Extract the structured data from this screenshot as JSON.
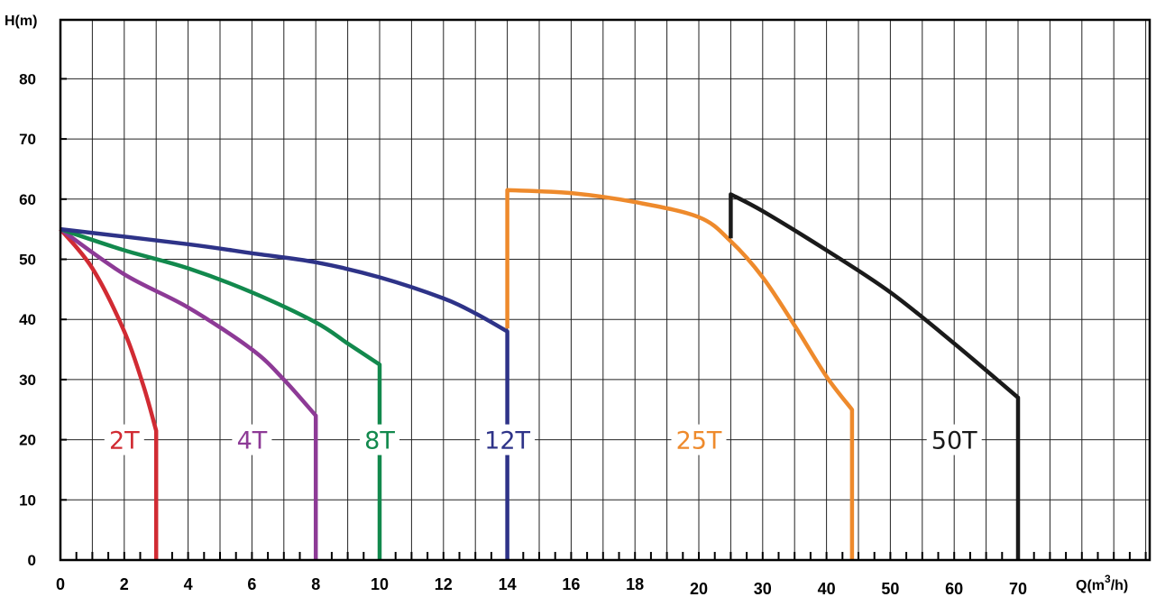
{
  "chart_data": {
    "type": "line",
    "title": "",
    "ylabel": "H(m)",
    "xlabel_prefix": "Q(m",
    "xlabel_sup": "3",
    "xlabel_suffix": "/h)",
    "ylim": [
      0,
      90
    ],
    "yticks": [
      "0",
      "10",
      "20",
      "30",
      "40",
      "50",
      "60",
      "70",
      "80"
    ],
    "xtick_labels": [
      "0",
      "2",
      "4",
      "6",
      "8",
      "10",
      "12",
      "14",
      "16",
      "18",
      "20",
      "30",
      "40",
      "50",
      "60",
      "70"
    ],
    "x_scale_note": "piecewise: 0-14 linear (2 per major grid), 14-20 continues; 20-70 with 10 per major grid",
    "grid": true,
    "series": [
      {
        "name": "2T",
        "color": "#d12b33",
        "points": [
          [
            0,
            55
          ],
          [
            1,
            48.5
          ],
          [
            2,
            38
          ],
          [
            2.6,
            29
          ],
          [
            3,
            21.5
          ],
          [
            3,
            0
          ]
        ]
      },
      {
        "name": "4T",
        "color": "#8d3a96",
        "points": [
          [
            0,
            55
          ],
          [
            2,
            47.5
          ],
          [
            4,
            42
          ],
          [
            6,
            35
          ],
          [
            7,
            30
          ],
          [
            8,
            24
          ],
          [
            8,
            0
          ]
        ]
      },
      {
        "name": "8T",
        "color": "#12894d",
        "points": [
          [
            0,
            55
          ],
          [
            2,
            51.5
          ],
          [
            4,
            48.5
          ],
          [
            6,
            44.5
          ],
          [
            8,
            39.5
          ],
          [
            9,
            36
          ],
          [
            10,
            32.5
          ],
          [
            10,
            0
          ]
        ]
      },
      {
        "name": "12T",
        "color": "#2e3388",
        "points": [
          [
            0,
            55
          ],
          [
            4,
            52.5
          ],
          [
            6,
            51
          ],
          [
            8,
            49.5
          ],
          [
            10,
            47
          ],
          [
            12,
            43.5
          ],
          [
            13,
            41
          ],
          [
            14,
            38
          ],
          [
            14,
            0
          ]
        ]
      },
      {
        "name": "25T",
        "color": "#ee8a2c",
        "points": [
          [
            14,
            38.5
          ],
          [
            14,
            61.5
          ],
          [
            16,
            61
          ],
          [
            18,
            59.5
          ],
          [
            20,
            57
          ],
          [
            25,
            53
          ],
          [
            30,
            47
          ],
          [
            35,
            39
          ],
          [
            40,
            30.5
          ],
          [
            44,
            25
          ],
          [
            44,
            0
          ]
        ]
      },
      {
        "name": "50T",
        "color": "#1a1a1a",
        "points": [
          [
            25,
            53.5
          ],
          [
            25,
            60.8
          ],
          [
            30,
            58
          ],
          [
            40,
            51.5
          ],
          [
            50,
            44.5
          ],
          [
            60,
            36
          ],
          [
            70,
            27
          ],
          [
            70,
            0
          ]
        ]
      }
    ],
    "labels": [
      {
        "text": "2T",
        "color": "#d12b33",
        "x": 2,
        "y": 20
      },
      {
        "text": "4T",
        "color": "#8d3a96",
        "x": 6,
        "y": 20
      },
      {
        "text": "8T",
        "color": "#12894d",
        "x": 10,
        "y": 20
      },
      {
        "text": "12T",
        "color": "#2e3388",
        "x": 14,
        "y": 20
      },
      {
        "text": "25T",
        "color": "#ee8a2c",
        "x": 20,
        "y": 20
      },
      {
        "text": "50T",
        "color": "#1a1a1a",
        "x": 60,
        "y": 20
      }
    ]
  }
}
